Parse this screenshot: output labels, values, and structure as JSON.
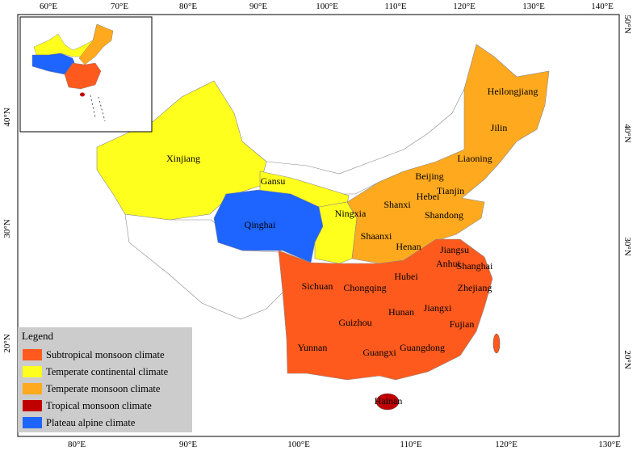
{
  "map": {
    "top_ticks": [
      "60°E",
      "70°E",
      "80°E",
      "90°E",
      "100°E",
      "110°E",
      "120°E",
      "130°E",
      "140°E"
    ],
    "bottom_ticks": [
      "80°E",
      "90°E",
      "100°E",
      "110°E",
      "120°E",
      "130°E"
    ],
    "left_ticks": [
      "40°N",
      "30°N",
      "20°N"
    ],
    "right_ticks": [
      "50°N",
      "40°N",
      "30°N",
      "20°N"
    ],
    "labels": [
      "Heilongjiang",
      "Jilin",
      "Liaoning",
      "Xinjiang",
      "Beijing",
      "Gansu",
      "Tianjin",
      "Hebei",
      "Shanxi",
      "Ningxia",
      "Shandong",
      "Qinghai",
      "Shaanxi",
      "Henan",
      "Jiangsu",
      "Anhui",
      "Shanghai",
      "Hubei",
      "Sichuan",
      "Chongqing",
      "Zhejiang",
      "Jiangxi",
      "Hunan",
      "Fujian",
      "Guizhou",
      "Yunnan",
      "Guangdong",
      "Guangxi",
      "Hainan"
    ],
    "legend": {
      "title": "Legend",
      "items": [
        {
          "label": "Subtropical monsoon climate",
          "color": "#ff5a1e"
        },
        {
          "label": "Temperate continental climate",
          "color": "#ffff1e"
        },
        {
          "label": "Temperate monsoon climate",
          "color": "#ffaa1e"
        },
        {
          "label": "Tropical monsoon climate",
          "color": "#c00000"
        },
        {
          "label": "Plateau alpine climate",
          "color": "#1e64ff"
        }
      ]
    }
  }
}
